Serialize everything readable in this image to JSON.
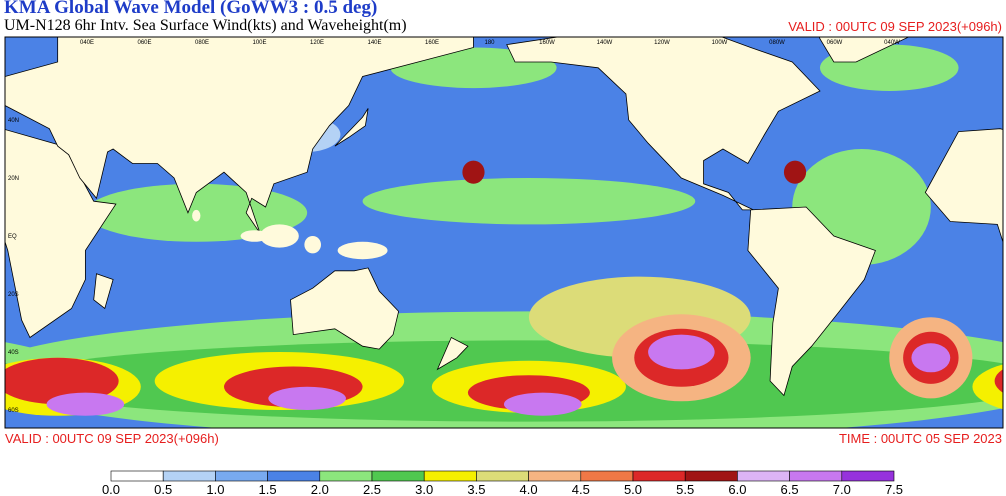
{
  "header": {
    "title": "KMA  Global Wave Model (GoWW3 : 0.5 deg)",
    "subtitle": "UM-N128  6hr Intv. Sea Surface Wind(kts) and Waveheight(m)",
    "valid": "VALID : 00UTC 09 SEP 2023(+096h)"
  },
  "map": {
    "lon_labels": [
      "040E",
      "060E",
      "080E",
      "100E",
      "120E",
      "140E",
      "160E",
      "180",
      "160W",
      "140W",
      "120W",
      "100W",
      "080W",
      "060W",
      "040W"
    ],
    "lat_labels": [
      "40N",
      "20N",
      "EQ",
      "20S",
      "40S",
      "60S"
    ]
  },
  "footer": {
    "valid": "VALID : 00UTC 09 SEP 2023(+096h)",
    "time": "TIME : 00UTC 05 SEP 2023"
  },
  "colorbar": {
    "ticks": [
      {
        "value": 0,
        "label": "0.0"
      },
      {
        "value": 0.5,
        "label": "0.5"
      },
      {
        "value": 1,
        "label": "1.0"
      },
      {
        "value": 1.5,
        "label": "1.5"
      },
      {
        "value": 2,
        "label": "2.0"
      },
      {
        "value": 2.5,
        "label": "2.5"
      },
      {
        "value": 3,
        "label": "3.0"
      },
      {
        "value": 3.5,
        "label": "3.5"
      },
      {
        "value": 4,
        "label": "4.0"
      },
      {
        "value": 4.5,
        "label": "4.5"
      },
      {
        "value": 5,
        "label": "5.0"
      },
      {
        "value": 5.5,
        "label": "5.5"
      },
      {
        "value": 6,
        "label": "6.0"
      },
      {
        "value": 6.5,
        "label": "6.5"
      },
      {
        "value": 7,
        "label": "7.0"
      },
      {
        "value": 7.5,
        "label": "7.5"
      }
    ],
    "colors": [
      "#ffffff",
      "#b4d2f5",
      "#78aaf0",
      "#4b82e6",
      "#8ce67d",
      "#50c850",
      "#f5f000",
      "#dcdc78",
      "#f5b482",
      "#f07846",
      "#dc2828",
      "#a01414",
      "#dcb4f5",
      "#c878f0",
      "#9632dc"
    ]
  }
}
